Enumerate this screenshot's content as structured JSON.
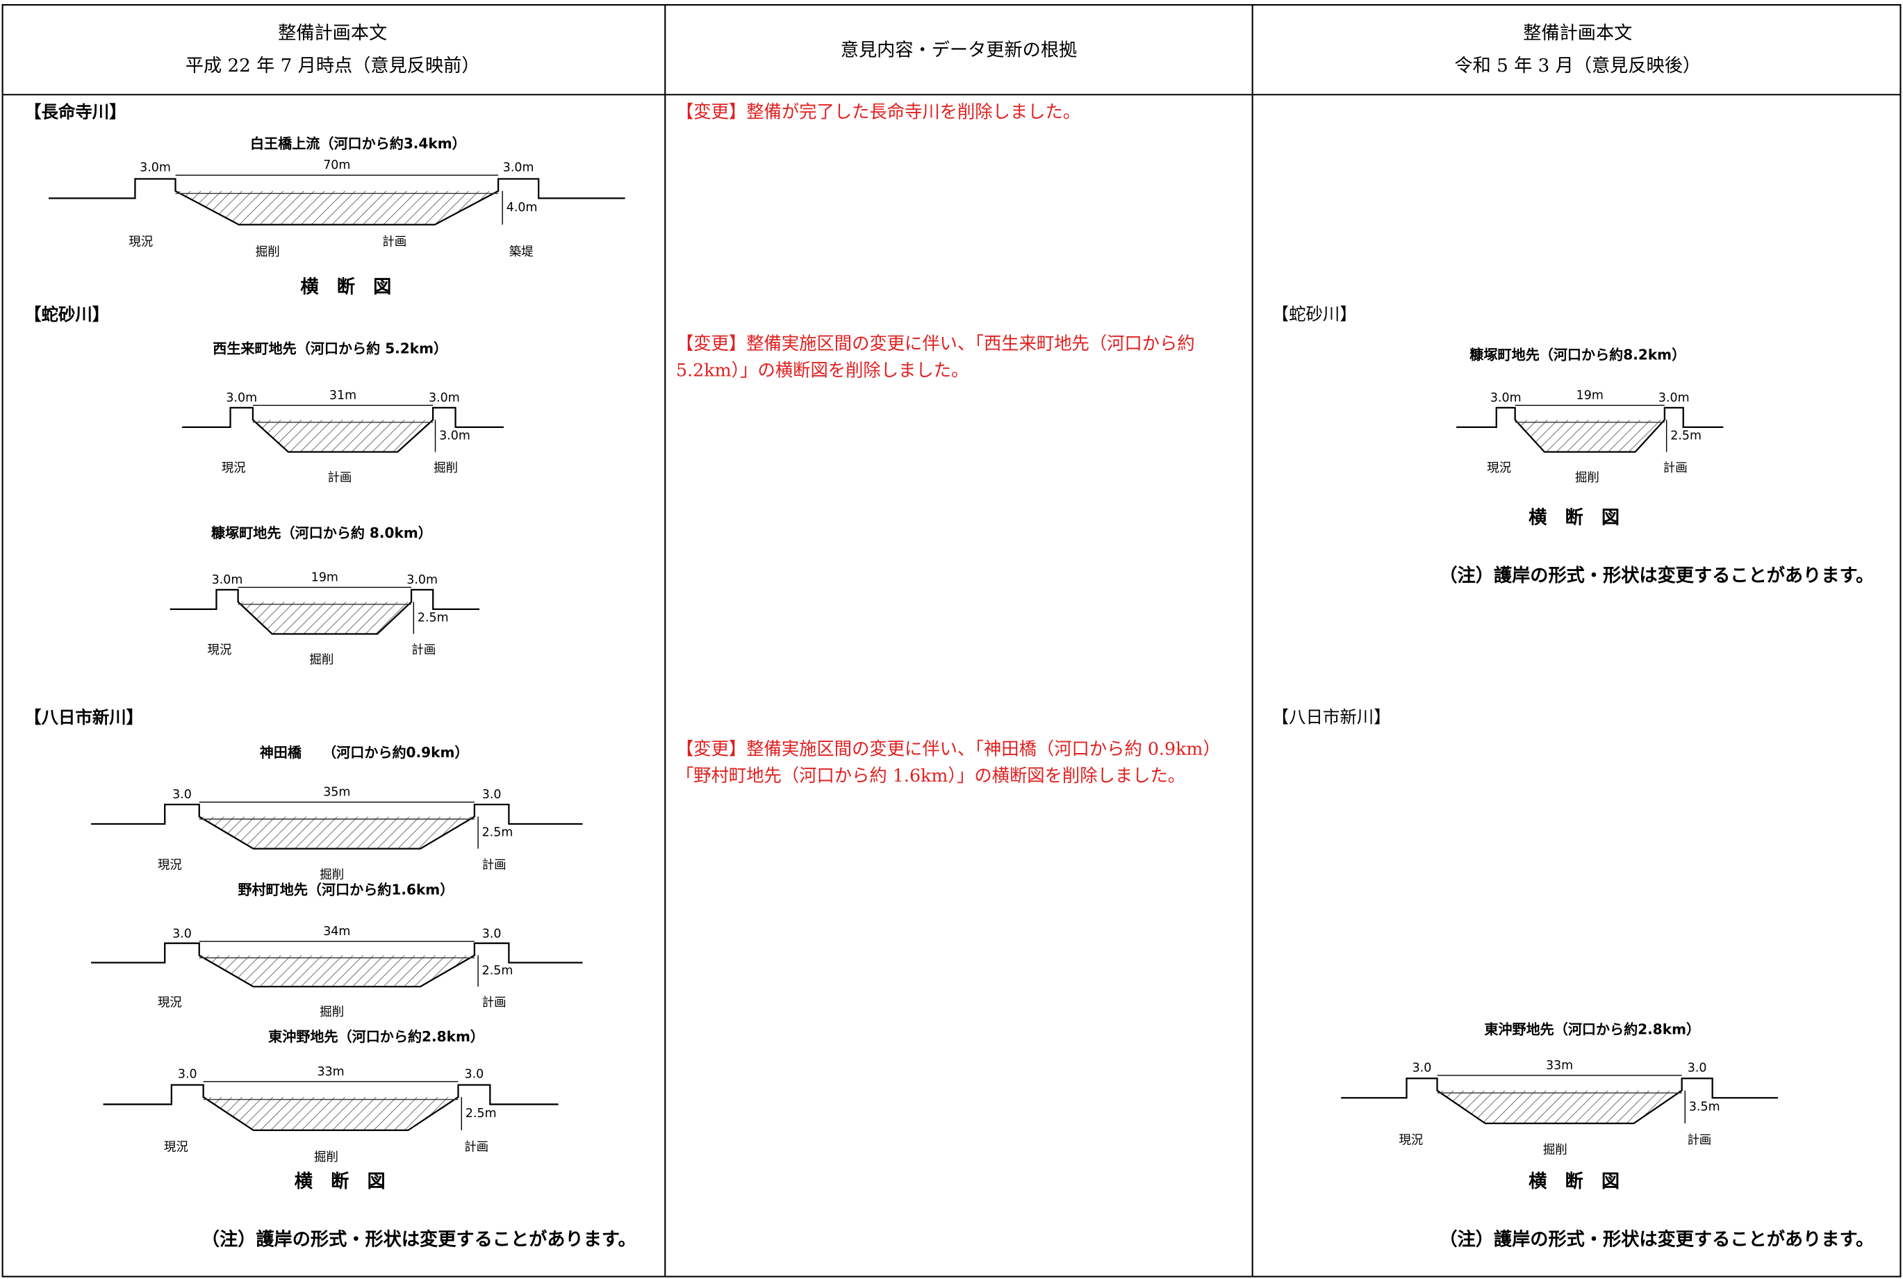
{
  "header": {
    "before": {
      "title": "整備計画本文",
      "date": "平成 22 年 7 月時点（意見反映前）"
    },
    "reason": "意見内容・データ更新の根拠",
    "after": {
      "title": "整備計画本文",
      "date": "令和 5 年 3 月（意見反映後）"
    }
  },
  "before": {
    "sections": [
      {
        "name": "【長命寺川】",
        "diagrams": [
          {
            "title": "白王橋上流（河口から約3.4km）",
            "width": "70m",
            "bank": "3.0m",
            "depth": "4.0m",
            "labels": [
              "現況",
              "掘削",
              "計画",
              "築堤"
            ]
          }
        ],
        "caption": "横　断　図"
      },
      {
        "name": "【蛇砂川】",
        "diagrams": [
          {
            "title": "西生来町地先（河口から約 5.2km）",
            "width": "31m",
            "bank": "3.0m",
            "depth": "3.0m",
            "labels": [
              "現況",
              "計画",
              "掘削"
            ]
          },
          {
            "title": "糠塚町地先（河口から約 8.0km）",
            "width": "19m",
            "bank": "3.0m",
            "depth": "2.5m",
            "labels": [
              "現況",
              "掘削",
              "計画"
            ]
          }
        ]
      },
      {
        "name": "【八日市新川】",
        "diagrams": [
          {
            "title": "神田橋　　（河口から約0.9km）",
            "width": "35m",
            "bank": "3.0",
            "depth": "2.5m",
            "labels": [
              "現況",
              "掘削",
              "計画"
            ]
          },
          {
            "title": "野村町地先（河口から約1.6km）",
            "width": "34m",
            "bank": "3.0",
            "depth": "2.5m",
            "labels": [
              "現況",
              "掘削",
              "計画"
            ]
          },
          {
            "title": "東沖野地先（河口から約2.8km）",
            "width": "33m",
            "bank": "3.0",
            "depth": "2.5m",
            "labels": [
              "現況",
              "掘削",
              "計画"
            ]
          }
        ],
        "caption": "横　断　図"
      }
    ],
    "note": "（注）護岸の形式・形状は変更することがあります。"
  },
  "reason": {
    "items": [
      [
        "【変更】整備が完了した長命寺川を削除しました。"
      ],
      [
        "【変更】整備実施区間の変更に伴い、「西生来町地先（河口から約",
        "5.2km）」の横断図を削除しました。"
      ],
      [
        "【変更】整備実施区間の変更に伴い、「神田橋（河口から約 0.9km）",
        "「野村町地先（河口から約 1.6km）」の横断図を削除しました。"
      ]
    ]
  },
  "after": {
    "sections": [
      {
        "name": "【蛇砂川】",
        "diagrams": [
          {
            "title": "糠塚町地先（河口から約8.2km）",
            "width": "19m",
            "bank": "3.0m",
            "depth": "2.5m",
            "labels": [
              "現況",
              "掘削",
              "計画"
            ]
          }
        ],
        "caption": "横　断　図",
        "note": "（注）護岸の形式・形状は変更することがあります。"
      },
      {
        "name": "【八日市新川】",
        "diagrams": [
          {
            "title": "東沖野地先（河口から約2.8km）",
            "width": "33m",
            "bank": "3.0",
            "depth": "3.5m",
            "labels": [
              "現況",
              "掘削",
              "計画"
            ]
          }
        ],
        "caption": "横　断　図",
        "note": "（注）護岸の形式・形状は変更することがあります。"
      }
    ]
  }
}
